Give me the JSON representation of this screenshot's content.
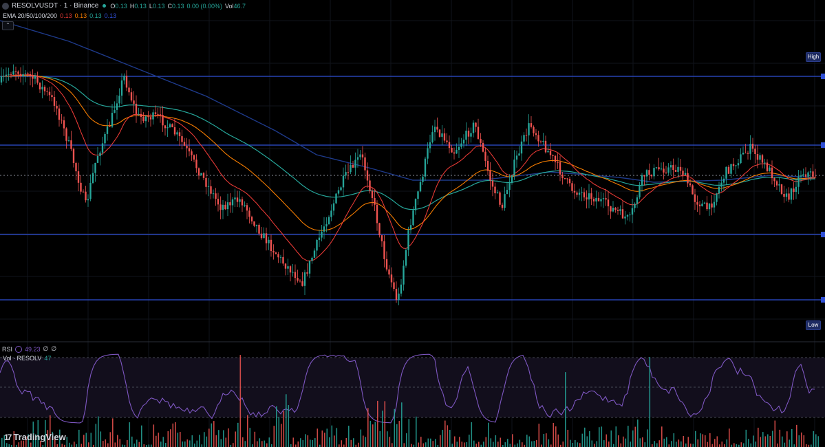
{
  "header": {
    "symbol": "RESOLVUSDT · 1 · Binance",
    "open_label": "O",
    "open": "0.13",
    "high_label": "H",
    "high": "0.13",
    "low_label": "L",
    "low": "0.13",
    "close_label": "C",
    "close": "0.13",
    "change": "0.00 (0.00%)",
    "vol_label": "Vol",
    "vol": "46.7"
  },
  "ema": {
    "label": "EMA 20/50/100/200",
    "v20": "0.13",
    "v50": "0.13",
    "v100": "0.13",
    "v200": "0.13"
  },
  "collapse_glyph": "⌃",
  "price_tags": {
    "high": "High",
    "low": "Low"
  },
  "rsi": {
    "label": "RSI",
    "value": "49.23",
    "extra1": "∅",
    "extra2": "∅"
  },
  "volume": {
    "label": "Vol · RESOLV",
    "value": "47"
  },
  "brand": {
    "logo_text": "TradingView",
    "logo_glyph": "17"
  },
  "colors": {
    "up": "#26a69a",
    "down": "#ef5350",
    "ema20": "#e53935",
    "ema50": "#f57c00",
    "ema100": "#26a69a",
    "ema200": "#1e3a8a",
    "hline": "#2f4fd6",
    "rsi": "#7e57c2"
  },
  "chart_data": {
    "type": "candlestick",
    "horizontal_levels": [
      "High",
      "Low"
    ],
    "indicators": [
      "EMA 20/50/100/200",
      "RSI",
      "Volume"
    ],
    "rsi_bands": [
      70,
      30
    ]
  }
}
